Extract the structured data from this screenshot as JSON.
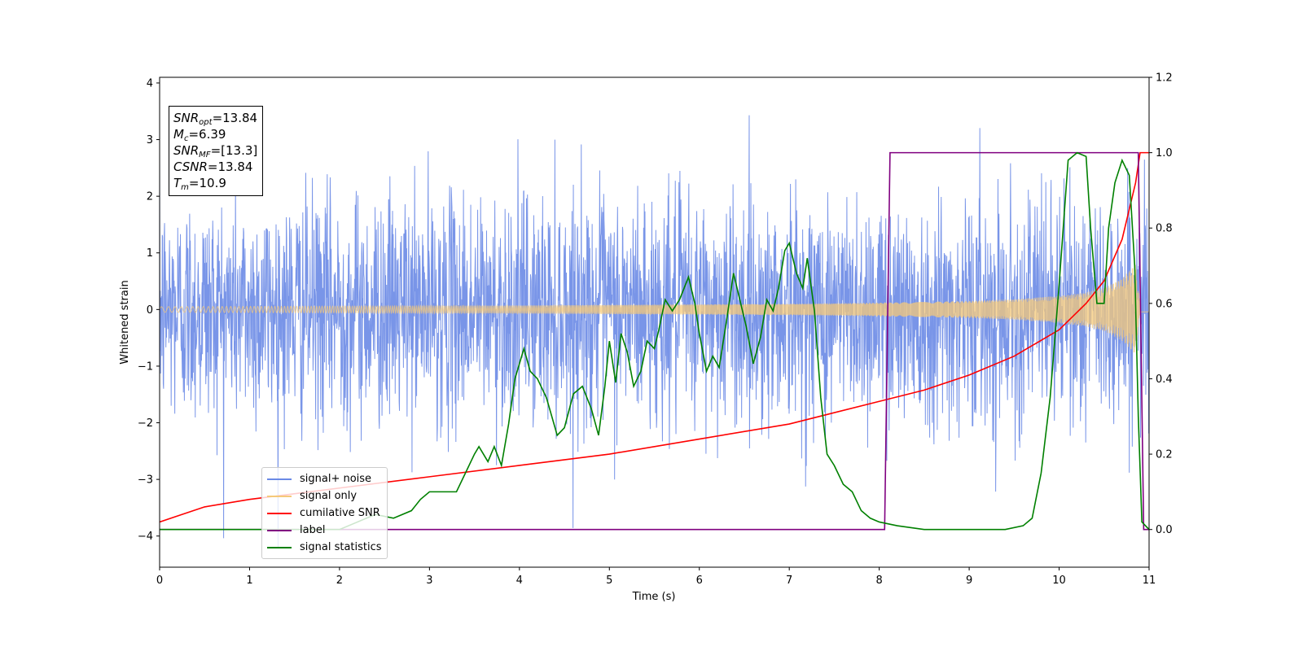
{
  "chart_data": {
    "type": "line",
    "xlabel": "Time (s)",
    "ylabel": "Whitened strain",
    "xlim": [
      0,
      11
    ],
    "ylim": [
      -4.55,
      4.1
    ],
    "y2lim": [
      -0.1,
      1.2
    ],
    "xticks": [
      "0",
      "1",
      "2",
      "3",
      "4",
      "5",
      "6",
      "7",
      "8",
      "9",
      "10",
      "11"
    ],
    "yticks": [
      "−4",
      "−3",
      "−2",
      "−1",
      "0",
      "1",
      "2",
      "3",
      "4"
    ],
    "y2ticks": [
      "0.0",
      "0.2",
      "0.4",
      "0.6",
      "0.8",
      "1.0",
      "1.2"
    ],
    "annotation": {
      "snr_opt_label": "SNR",
      "snr_opt_sub": "opt",
      "snr_opt_value": "=13.84",
      "mc_label": "M",
      "mc_sub": "c",
      "mc_value": "=6.39",
      "snr_mf_label": "SNR",
      "snr_mf_sub": "MF",
      "snr_mf_value": "=[13.3]",
      "csnr_label": "CSNR",
      "csnr_value": "=13.84",
      "tm_label": "T",
      "tm_sub": "m",
      "tm_value": "=10.9"
    },
    "legend": {
      "placement": "lower-left",
      "entries": [
        "signal+ noise",
        "signal only",
        "cumilative SNR",
        "label",
        "signal statistics"
      ]
    },
    "series": [
      {
        "name": "signal+ noise",
        "color": "#6a8ae6",
        "axis": "left",
        "noise_std": 1.0,
        "range": [
          -4.2,
          3.7
        ]
      },
      {
        "name": "signal only",
        "color": "#f5c97a",
        "axis": "left",
        "envelope_t": [
          0,
          2,
          4,
          6,
          7,
          8,
          9,
          9.5,
          10,
          10.3,
          10.5,
          10.7,
          10.85,
          10.9
        ],
        "envelope_amp": [
          0.05,
          0.06,
          0.07,
          0.09,
          0.1,
          0.12,
          0.15,
          0.18,
          0.24,
          0.3,
          0.38,
          0.55,
          0.8,
          0.05
        ]
      },
      {
        "name": "cumilative SNR",
        "color": "#ff0000",
        "axis": "right",
        "x": [
          0,
          0.5,
          1,
          2,
          3,
          4,
          5,
          6,
          7,
          8,
          8.5,
          9,
          9.5,
          10,
          10.3,
          10.5,
          10.7,
          10.85,
          10.9,
          11
        ],
        "values": [
          0.02,
          0.06,
          0.08,
          0.11,
          0.14,
          0.17,
          0.2,
          0.24,
          0.28,
          0.34,
          0.37,
          0.41,
          0.46,
          0.53,
          0.6,
          0.66,
          0.77,
          0.92,
          1.0,
          1.0
        ]
      },
      {
        "name": "label",
        "color": "#800080",
        "axis": "right",
        "x": [
          0,
          8.06,
          8.12,
          10.88,
          10.94,
          11
        ],
        "values": [
          0,
          0,
          1,
          1,
          0,
          0
        ]
      },
      {
        "name": "signal statistics",
        "color": "#008000",
        "axis": "right",
        "x": [
          0,
          0.5,
          1.0,
          1.5,
          2.0,
          2.2,
          2.4,
          2.6,
          2.8,
          2.9,
          3.0,
          3.1,
          3.2,
          3.3,
          3.4,
          3.5,
          3.55,
          3.65,
          3.72,
          3.8,
          3.88,
          3.95,
          4.05,
          4.12,
          4.2,
          4.3,
          4.42,
          4.5,
          4.6,
          4.7,
          4.8,
          4.88,
          4.95,
          5.0,
          5.07,
          5.13,
          5.2,
          5.27,
          5.35,
          5.42,
          5.5,
          5.55,
          5.62,
          5.7,
          5.78,
          5.88,
          5.95,
          6.0,
          6.08,
          6.15,
          6.22,
          6.3,
          6.38,
          6.45,
          6.52,
          6.6,
          6.68,
          6.75,
          6.82,
          6.88,
          6.95,
          7.0,
          7.08,
          7.15,
          7.2,
          7.28,
          7.35,
          7.42,
          7.5,
          7.6,
          7.7,
          7.8,
          7.9,
          8.0,
          8.2,
          8.5,
          9.0,
          9.4,
          9.6,
          9.7,
          9.8,
          9.9,
          10.0,
          10.1,
          10.2,
          10.3,
          10.35,
          10.42,
          10.5,
          10.55,
          10.62,
          10.7,
          10.78,
          10.84,
          10.88,
          10.92,
          11.0
        ],
        "values": [
          0.0,
          0.0,
          0.0,
          0.0,
          0.0,
          0.02,
          0.04,
          0.03,
          0.05,
          0.08,
          0.1,
          0.1,
          0.1,
          0.1,
          0.15,
          0.2,
          0.22,
          0.18,
          0.22,
          0.17,
          0.28,
          0.4,
          0.48,
          0.42,
          0.4,
          0.35,
          0.25,
          0.27,
          0.36,
          0.38,
          0.32,
          0.25,
          0.38,
          0.5,
          0.39,
          0.52,
          0.47,
          0.38,
          0.42,
          0.5,
          0.48,
          0.53,
          0.61,
          0.58,
          0.61,
          0.67,
          0.6,
          0.52,
          0.42,
          0.46,
          0.43,
          0.55,
          0.68,
          0.61,
          0.54,
          0.44,
          0.51,
          0.61,
          0.58,
          0.64,
          0.74,
          0.76,
          0.68,
          0.64,
          0.72,
          0.58,
          0.35,
          0.2,
          0.17,
          0.12,
          0.1,
          0.05,
          0.03,
          0.02,
          0.01,
          0.0,
          0.0,
          0.0,
          0.01,
          0.03,
          0.15,
          0.35,
          0.65,
          0.98,
          1.0,
          0.99,
          0.8,
          0.6,
          0.6,
          0.8,
          0.92,
          0.98,
          0.94,
          0.7,
          0.3,
          0.02,
          0.0
        ]
      }
    ],
    "grid": false
  }
}
